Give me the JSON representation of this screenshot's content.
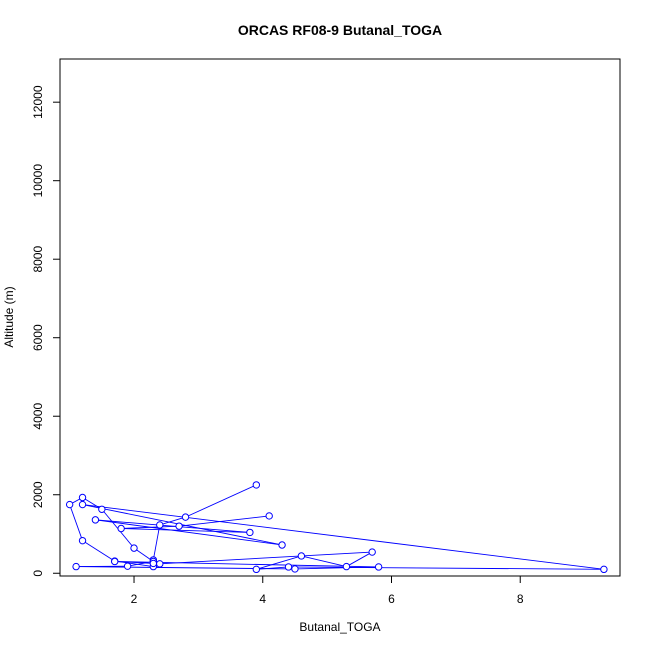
{
  "chart_data": {
    "type": "line",
    "title": "ORCAS RF08-9 Butanal_TOGA",
    "xlabel": "Butanal_TOGA",
    "ylabel": "Altitude (m)",
    "xlim": [
      0.85,
      9.55
    ],
    "ylim": [
      -70,
      13100
    ],
    "x_ticks": [
      2,
      4,
      6,
      8
    ],
    "y_ticks": [
      0,
      2000,
      4000,
      6000,
      8000,
      10000,
      12000
    ],
    "markers": "open-circle",
    "grid": false,
    "legend": "none",
    "series_color": "#0000ff",
    "series": [
      {
        "x": [
          3.9,
          2.8,
          2.4,
          2.3,
          2.3,
          1.7,
          1.2,
          1.0,
          1.2,
          1.5,
          2.0,
          2.3,
          1.9,
          1.1,
          4.5,
          5.8,
          1.7,
          2.3,
          2.4,
          5.7,
          5.3,
          4.6,
          3.9,
          4.4,
          9.3,
          1.2,
          4.3,
          1.4,
          3.8,
          1.8,
          2.7,
          4.1
        ],
        "y": [
          2250,
          1430,
          1230,
          340,
          170,
          310,
          830,
          1750,
          1930,
          1630,
          640,
          300,
          180,
          170,
          110,
          160,
          300,
          250,
          240,
          540,
          170,
          440,
          100,
          160,
          100,
          1750,
          720,
          1360,
          1040,
          1140,
          1200,
          1460
        ]
      }
    ]
  }
}
